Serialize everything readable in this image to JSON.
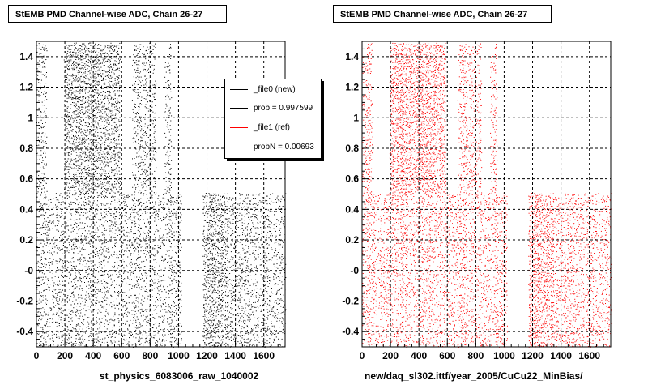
{
  "chart_data": [
    {
      "type": "scatter",
      "title": "StEMB PMD Channel-wise ADC, Chain 26-27",
      "xlabel": "st_physics_6083006_raw_1040002",
      "ylabel": "",
      "xlim": [
        0,
        1750
      ],
      "ylim": [
        -0.5,
        1.5
      ],
      "x_ticks": [
        "0",
        "200",
        "400",
        "600",
        "800",
        "1000",
        "1200",
        "1400",
        "1600"
      ],
      "y_ticks": [
        "-0.4",
        "-0.2",
        "-0",
        "0.2",
        "0.4",
        "0.6",
        "0.8",
        "1",
        "1.2",
        "1.4"
      ],
      "grid": true,
      "color": "#000000",
      "point_density": 0.55,
      "gaps": [
        {
          "x": [
            70,
            190
          ],
          "y": [
            0.5,
            1.5
          ]
        },
        {
          "x": [
            590,
            670
          ],
          "y": [
            0.5,
            1.5
          ]
        },
        {
          "x": [
            840,
            900
          ],
          "y": [
            0.5,
            1.5
          ]
        },
        {
          "x": [
            950,
            1760
          ],
          "y": [
            0.5,
            1.5
          ]
        },
        {
          "x": [
            1020,
            1170
          ],
          "y": [
            -0.5,
            0.5
          ]
        }
      ],
      "dense_bands": [
        {
          "x": [
            200,
            580
          ],
          "y": [
            0.5,
            1.5
          ]
        },
        {
          "x": [
            1150,
            1350
          ],
          "y": [
            -0.5,
            0.5
          ]
        }
      ],
      "legend": {
        "position": "top-right",
        "entries": [
          {
            "label": "_file0 (new)",
            "color": "#000000"
          },
          {
            "label": "prob = 0.997599",
            "color": "#000000"
          },
          {
            "label": "_file1 (ref)",
            "color": "#ff0000"
          },
          {
            "label": "probN = 0.00693",
            "color": "#ff0000"
          }
        ]
      }
    },
    {
      "type": "scatter",
      "title": "StEMB PMD Channel-wise ADC, Chain 26-27",
      "xlabel": "new/daq_sl302.ittf/year_2005/CuCu22_MinBias/",
      "ylabel": "",
      "xlim": [
        0,
        1750
      ],
      "ylim": [
        -0.5,
        1.5
      ],
      "x_ticks": [
        "0",
        "200",
        "400",
        "600",
        "800",
        "1000",
        "1200",
        "1400",
        "1600"
      ],
      "y_ticks": [
        "-0.4",
        "-0.2",
        "-0",
        "0.2",
        "0.4",
        "0.6",
        "0.8",
        "1",
        "1.2",
        "1.4"
      ],
      "grid": true,
      "color": "#ff0000",
      "point_density": 0.55,
      "gaps": [
        {
          "x": [
            70,
            190
          ],
          "y": [
            0.5,
            1.5
          ]
        },
        {
          "x": [
            590,
            670
          ],
          "y": [
            0.5,
            1.5
          ]
        },
        {
          "x": [
            840,
            900
          ],
          "y": [
            0.5,
            1.5
          ]
        },
        {
          "x": [
            950,
            1760
          ],
          "y": [
            0.5,
            1.5
          ]
        },
        {
          "x": [
            1020,
            1170
          ],
          "y": [
            -0.5,
            0.5
          ]
        }
      ],
      "dense_bands": [
        {
          "x": [
            200,
            580
          ],
          "y": [
            0.5,
            1.5
          ]
        },
        {
          "x": [
            1150,
            1350
          ],
          "y": [
            -0.5,
            0.5
          ]
        }
      ]
    }
  ]
}
